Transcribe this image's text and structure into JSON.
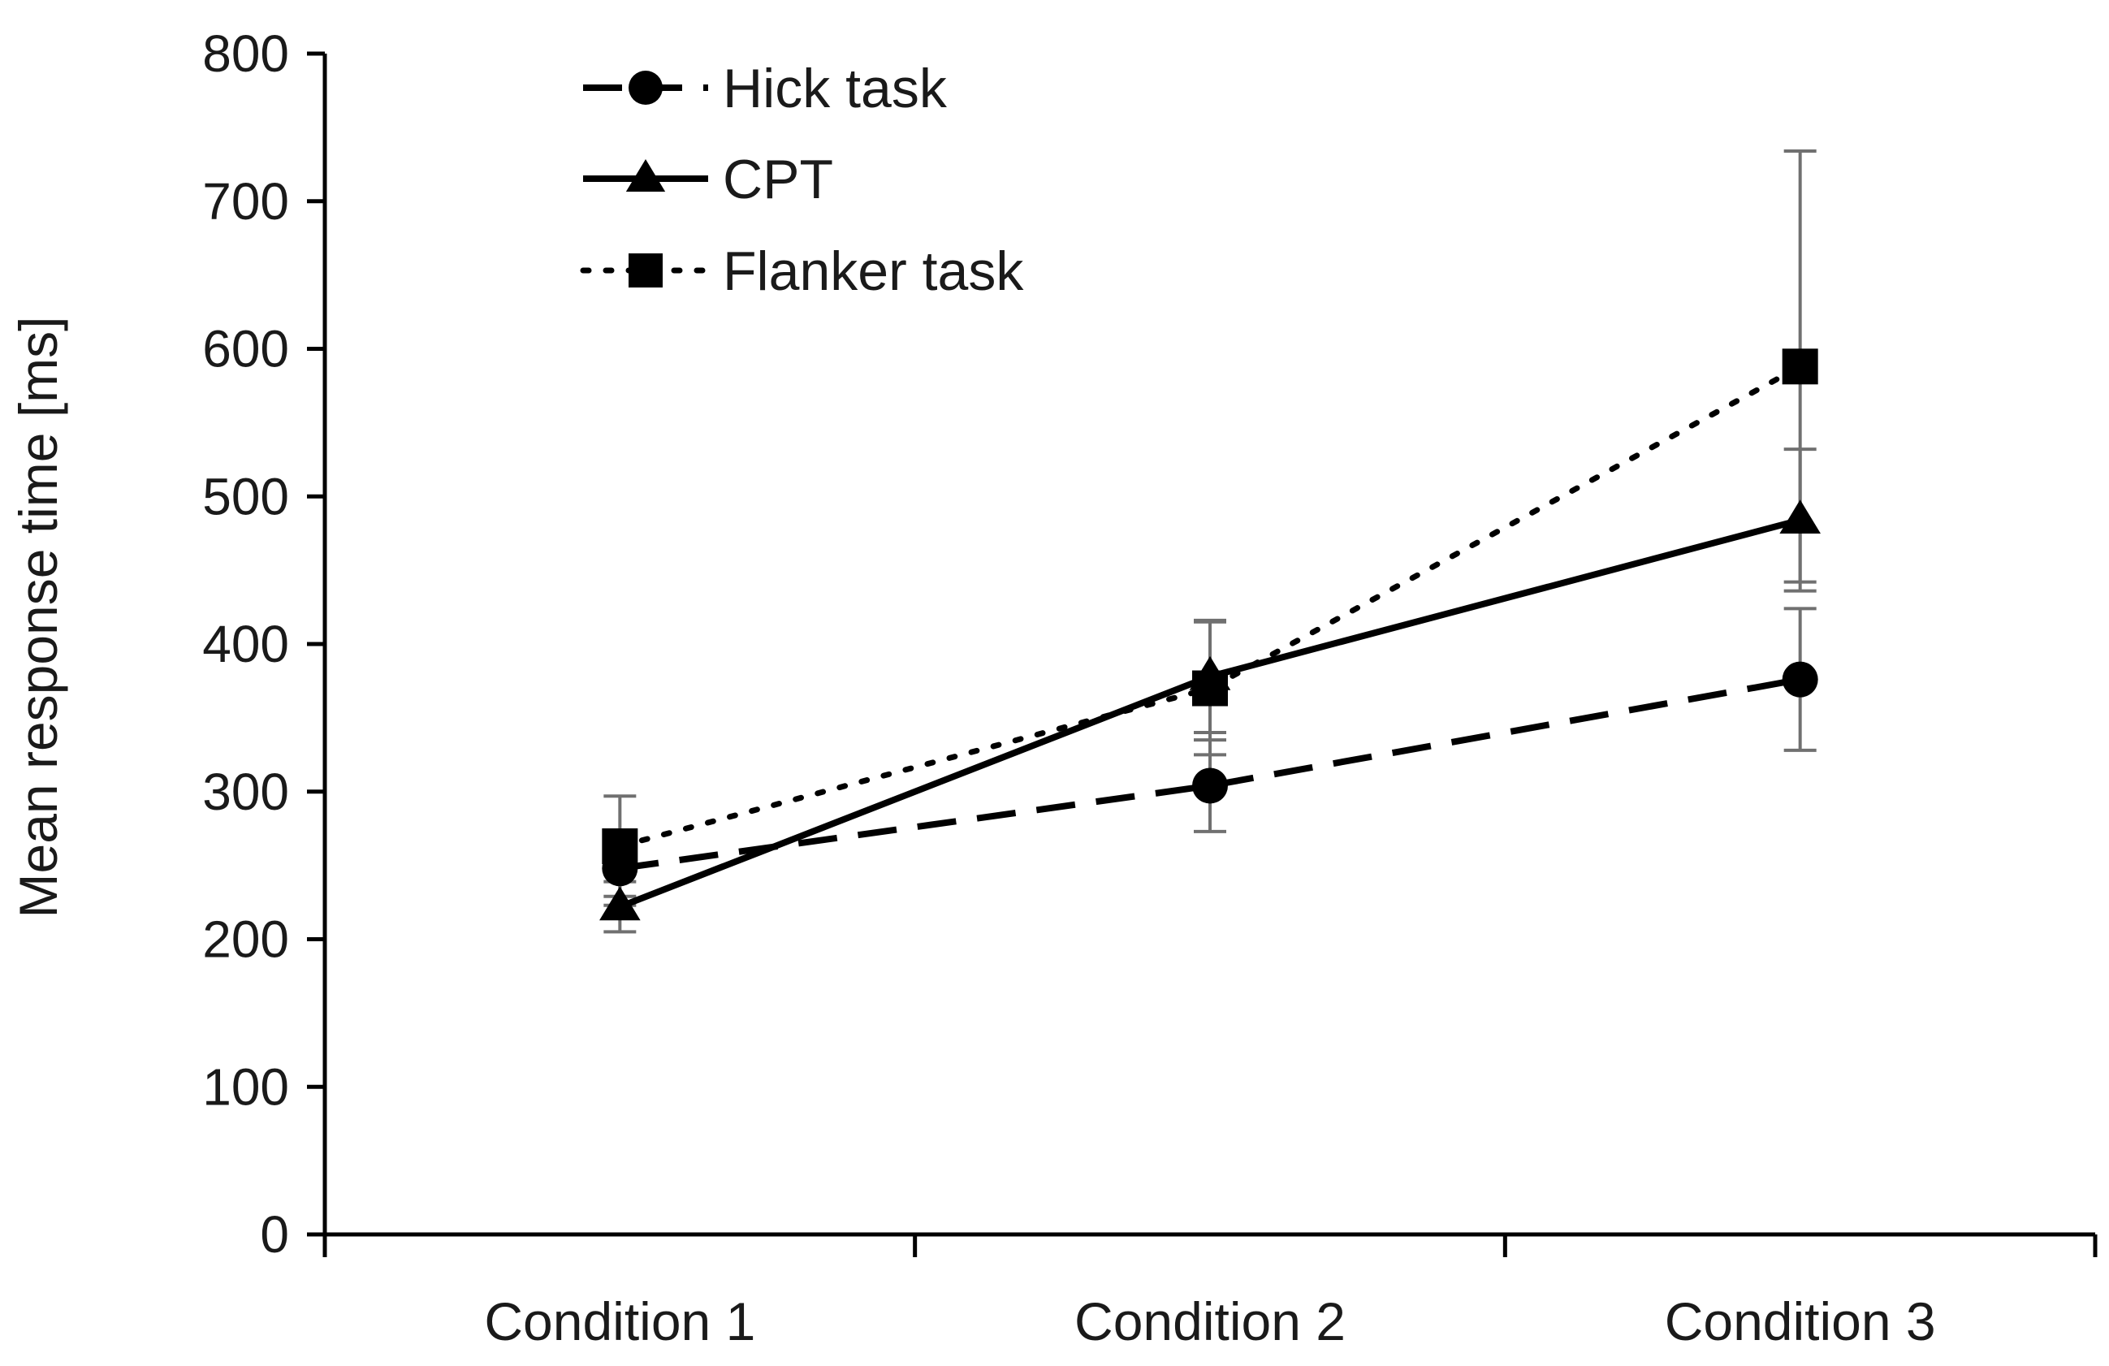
{
  "chart_data": {
    "type": "line",
    "ylabel": "Mean response time [ms]",
    "xlabel": "",
    "ylim": [
      0,
      800
    ],
    "yticks": [
      0,
      100,
      200,
      300,
      400,
      500,
      600,
      700,
      800
    ],
    "categories": [
      "Condition 1",
      "Condition 2",
      "Condition 3"
    ],
    "grid": false,
    "legend_position": "top-left",
    "series": [
      {
        "name": "Hick task",
        "line_style": "dashed",
        "marker": "circle",
        "color": "#000000",
        "values": [
          248,
          304,
          376
        ],
        "error": [
          25,
          31,
          48
        ]
      },
      {
        "name": "CPT",
        "line_style": "solid",
        "marker": "triangle",
        "color": "#000000",
        "values": [
          222,
          378,
          484
        ],
        "error": [
          17,
          38,
          48
        ]
      },
      {
        "name": "Flanker task",
        "line_style": "dotted",
        "marker": "square",
        "color": "#000000",
        "values": [
          263,
          370,
          588
        ],
        "error": [
          34,
          45,
          146
        ]
      }
    ],
    "error_bar_color": "#707070"
  }
}
